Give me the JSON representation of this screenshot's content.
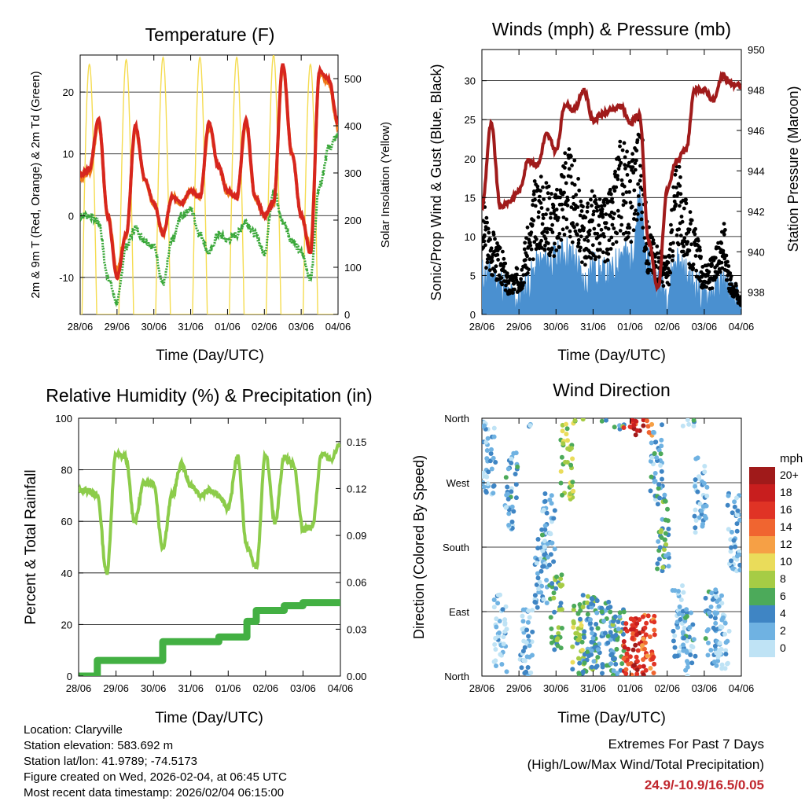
{
  "colors": {
    "temp_2m": "#d7261e",
    "temp_9m": "#f07a1b",
    "dewpoint": "#3aa83a",
    "solar": "#f5dc50",
    "gust": "#000000",
    "sonic": "#4a90d0",
    "pressure": "#a01b1b",
    "rh": "#8ccc4a",
    "precip": "#43b043",
    "grid": "#000000",
    "extremes": "#c0262d"
  },
  "time_ticks": [
    "28/06",
    "29/06",
    "30/06",
    "31/06",
    "01/06",
    "02/06",
    "03/06",
    "04/06"
  ],
  "panels": {
    "temperature": {
      "title": "Temperature (F)",
      "xlabel": "Time (Day/UTC)",
      "ylabel_left": "2m & 9m T (Red, Orange) & 2m Td (Green)",
      "ylabel_right": "Solar Insolation (Yellow)"
    },
    "winds": {
      "title": "Winds (mph) & Pressure (mb)",
      "xlabel": "Time (Day/UTC)",
      "ylabel_left": "Sonic/Prop Wind & Gust (Blue, Black)",
      "ylabel_right": "Station Pressure (Maroon)"
    },
    "humidity": {
      "title": "Relative Humidity (%) & Precipitation (in)",
      "xlabel": "Time (Day/UTC)",
      "ylabel_left": "Percent & Total Rainfall"
    },
    "direction": {
      "title": "Wind Direction",
      "xlabel": "Time (Day/UTC)",
      "ylabel_left": "Direction (Colored By Speed)"
    }
  },
  "legend": {
    "unit": "mph",
    "labels": [
      "20+",
      "18",
      "16",
      "14",
      "12",
      "10",
      "8",
      "6",
      "4",
      "2",
      "0"
    ],
    "colors": [
      "#a01a1a",
      "#c81e1e",
      "#e03325",
      "#f06530",
      "#f6a045",
      "#eadc5a",
      "#a6cc45",
      "#4caa5a",
      "#3f85c4",
      "#6fb2e2",
      "#bfe3f5"
    ]
  },
  "info": {
    "location": "Location: Claryville",
    "elevation": "Station elevation: 583.692 m",
    "latlon": "Station lat/lon: 41.9789; -74.5173",
    "created": "Figure created on Wed, 2026-02-04, at 06:45 UTC",
    "recent": "Most recent data timestamp: 2026/02/04 06:15:00"
  },
  "extremes": {
    "title": "Extremes For Past 7 Days",
    "subtitle": "(High/Low/Max Wind/Total Precipitation)",
    "values": "24.9/-10.9/16.5/0.05"
  },
  "chart_data": [
    {
      "type": "line",
      "title": "Temperature (F)",
      "xlabel": "Time (Day/UTC)",
      "ylabel": "2m & 9m T (Red, Orange) & 2m Td (Green)",
      "y2label": "Solar Insolation (Yellow)",
      "x": [
        0,
        0.25,
        0.5,
        0.75,
        1,
        1.25,
        1.5,
        1.75,
        2,
        2.25,
        2.5,
        2.75,
        3,
        3.25,
        3.5,
        3.75,
        4,
        4.25,
        4.5,
        4.75,
        5,
        5.25,
        5.5,
        5.75,
        6,
        6.25,
        6.5,
        6.75,
        7
      ],
      "xtick_labels": [
        "28/06",
        "29/06",
        "30/06",
        "31/06",
        "01/06",
        "02/06",
        "03/06",
        "04/06"
      ],
      "ylim": [
        -16,
        26
      ],
      "yticks": [
        -10,
        0,
        10,
        20
      ],
      "y2lim": [
        0,
        550
      ],
      "y2ticks": [
        0,
        100,
        200,
        300,
        400,
        500
      ],
      "series": [
        {
          "name": "2m T",
          "values": [
            6.5,
            7.5,
            15.5,
            0,
            -10,
            -3,
            14.5,
            6,
            2,
            -3,
            3,
            2,
            4,
            3,
            15,
            8,
            4,
            3,
            15.5,
            3,
            0,
            2,
            24.5,
            10,
            0,
            -6,
            23.5,
            22,
            15
          ]
        },
        {
          "name": "9m T",
          "values": [
            6,
            7,
            15,
            0,
            -9,
            -3,
            14,
            6,
            2,
            -3,
            3,
            2,
            4,
            3,
            14.5,
            8,
            4,
            3,
            15,
            3,
            0,
            2,
            24,
            10,
            0,
            -5,
            23,
            21.5,
            14.5
          ]
        },
        {
          "name": "2m Td",
          "values": [
            0,
            0,
            -1,
            -10,
            -14,
            -5,
            -2,
            -4,
            -5,
            -11,
            -4,
            0,
            1,
            -3,
            -6,
            -3,
            -4,
            -3,
            -1,
            -3,
            -6,
            4,
            -1,
            -4,
            -6,
            -10,
            5,
            11,
            13
          ]
        },
        {
          "name": "Solar Insolation",
          "axis": "right",
          "values": [
            0,
            530,
            0,
            0,
            0,
            540,
            0,
            0,
            0,
            545,
            0,
            0,
            0,
            545,
            0,
            0,
            0,
            545,
            0,
            0,
            0,
            550,
            0,
            0,
            0,
            530,
            0,
            0,
            0
          ]
        }
      ]
    },
    {
      "type": "line",
      "title": "Winds (mph) & Pressure (mb)",
      "xlabel": "Time (Day/UTC)",
      "ylabel": "Sonic/Prop Wind & Gust (Blue, Black)",
      "y2label": "Station Pressure (Maroon)",
      "x": [
        0,
        0.25,
        0.5,
        0.75,
        1,
        1.25,
        1.5,
        1.75,
        2,
        2.25,
        2.5,
        2.75,
        3,
        3.25,
        3.5,
        3.75,
        4,
        4.25,
        4.5,
        4.75,
        5,
        5.25,
        5.5,
        5.75,
        6,
        6.25,
        6.5,
        6.75,
        7
      ],
      "xtick_labels": [
        "28/06",
        "29/06",
        "30/06",
        "31/06",
        "01/06",
        "02/06",
        "03/06",
        "04/06"
      ],
      "ylim": [
        0,
        34
      ],
      "yticks": [
        0,
        5,
        10,
        15,
        20,
        25,
        30
      ],
      "y2lim": [
        936.9,
        950
      ],
      "y2ticks": [
        938,
        940,
        942,
        944,
        946,
        948,
        950
      ],
      "series": [
        {
          "name": "Gust",
          "values": [
            12,
            9,
            7,
            4,
            5,
            9,
            15,
            14,
            13,
            18,
            16,
            11,
            13,
            12,
            13,
            19,
            16,
            22,
            9,
            7,
            6,
            16,
            12,
            9,
            5,
            6,
            10,
            4,
            2
          ]
        },
        {
          "name": "Sonic Wind",
          "values": [
            5,
            5,
            4,
            2,
            2,
            4,
            6,
            7,
            7,
            8,
            7,
            4,
            6,
            5,
            5,
            8,
            7,
            14,
            6,
            4,
            3,
            7,
            5,
            4,
            2,
            3,
            4,
            2,
            1
          ]
        },
        {
          "name": "Station Pressure",
          "axis": "right",
          "values": [
            942.2,
            946.3,
            942.2,
            942.5,
            943,
            944.5,
            944.3,
            945.8,
            945,
            947.3,
            947,
            948,
            946.5,
            946.8,
            947,
            947.2,
            946.4,
            946.8,
            940.5,
            938.2,
            943,
            944.5,
            945,
            948,
            948,
            947.5,
            948.7,
            948.3,
            948.2
          ]
        }
      ]
    },
    {
      "type": "line",
      "title": "Relative Humidity (%) & Precipitation (in)",
      "xlabel": "Time (Day/UTC)",
      "ylabel": "Percent & Total Rainfall",
      "x": [
        0,
        0.25,
        0.5,
        0.75,
        1,
        1.25,
        1.5,
        1.75,
        2,
        2.25,
        2.5,
        2.75,
        3,
        3.25,
        3.5,
        3.75,
        4,
        4.25,
        4.5,
        4.75,
        5,
        5.25,
        5.5,
        5.75,
        6,
        6.25,
        6.5,
        6.75,
        7
      ],
      "xtick_labels": [
        "28/06",
        "29/06",
        "30/06",
        "31/06",
        "01/06",
        "02/06",
        "03/06",
        "04/06"
      ],
      "ylim": [
        0,
        100
      ],
      "yticks": [
        0,
        20,
        40,
        60,
        80,
        100
      ],
      "y2lim": [
        0,
        0.165
      ],
      "y2ticks": [
        0.0,
        0.03,
        0.06,
        0.09,
        0.12,
        0.15
      ],
      "series": [
        {
          "name": "Relative Humidity",
          "values": [
            72,
            72,
            70,
            40,
            86,
            85,
            60,
            75,
            75,
            50,
            70,
            82,
            74,
            70,
            72,
            70,
            65,
            85,
            50,
            42,
            86,
            60,
            85,
            82,
            57,
            58,
            86,
            84,
            90
          ]
        },
        {
          "name": "Total Precipitation",
          "axis": "right",
          "values": [
            0,
            0,
            0.01,
            0.01,
            0.01,
            0.01,
            0.01,
            0.01,
            0.01,
            0.022,
            0.022,
            0.022,
            0.022,
            0.022,
            0.022,
            0.025,
            0.025,
            0.025,
            0.035,
            0.042,
            0.042,
            0.042,
            0.045,
            0.045,
            0.047,
            0.047,
            0.047,
            0.047,
            0.047
          ]
        }
      ]
    },
    {
      "type": "scatter",
      "title": "Wind Direction",
      "xlabel": "Time (Day/UTC)",
      "ylabel": "Direction (Colored By Speed)",
      "ytick_labels": [
        "North",
        "East",
        "South",
        "West",
        "North"
      ],
      "ylim": [
        0,
        360
      ],
      "colorbar_unit": "mph",
      "colorbar_labels": [
        "20+",
        "18",
        "16",
        "14",
        "12",
        "10",
        "8",
        "6",
        "4",
        "2",
        "0"
      ],
      "x": [
        0.2,
        0.5,
        0.8,
        1.2,
        1.6,
        1.8,
        2.0,
        2.3,
        2.6,
        2.9,
        3.1,
        3.4,
        3.7,
        4.0,
        4.2,
        4.5,
        4.7,
        4.9,
        5.3,
        5.6,
        5.9,
        6.2,
        6.5,
        6.8
      ],
      "directions": [
        300,
        60,
        260,
        40,
        150,
        200,
        90,
        300,
        50,
        60,
        60,
        50,
        40,
        35,
        30,
        30,
        300,
        200,
        80,
        40,
        250,
        70,
        60,
        200
      ],
      "speeds": [
        2,
        1,
        3,
        2,
        3,
        2,
        6,
        8,
        7,
        5,
        4,
        4,
        5,
        16,
        18,
        14,
        3,
        5,
        2,
        3,
        2,
        3,
        1,
        2
      ]
    }
  ]
}
